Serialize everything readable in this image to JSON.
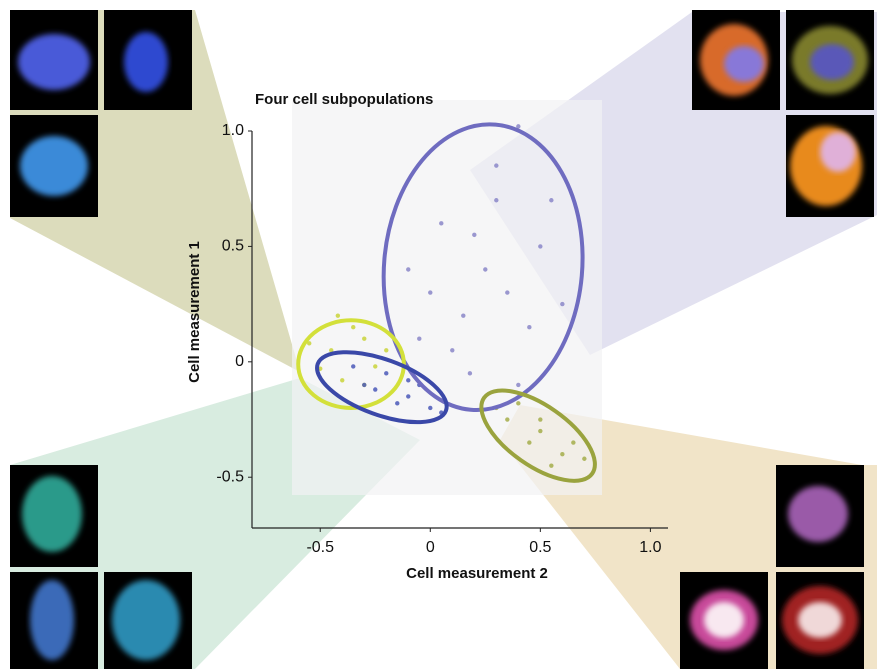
{
  "chart_data": {
    "type": "scatter",
    "title": "Four cell subpopulations",
    "x_label": "Cell measurement 2",
    "y_label": "Cell measurement 1",
    "xlim": [
      -0.81,
      1.08
    ],
    "ylim": [
      -0.72,
      1.0
    ],
    "xticks": [
      -0.5,
      0,
      0.5,
      {
        "value": 1,
        "label": "1.0"
      }
    ],
    "yticks": [
      -0.5,
      0,
      0.5,
      {
        "value": 1,
        "label": "1.0"
      }
    ],
    "series": [
      {
        "color": "#8a86c8",
        "ellipse_color": "#6f6cc0",
        "x": [
          0.05,
          0.3,
          0.4,
          0.15,
          0.35,
          0.5,
          -0.1,
          0.2,
          0.45,
          0.1,
          0.3,
          -0.05,
          0.6,
          0.25,
          0.0,
          0.55,
          0.18,
          0.4
        ],
        "y": [
          0.6,
          0.85,
          1.02,
          0.2,
          0.3,
          0.5,
          0.4,
          0.55,
          0.15,
          0.05,
          0.7,
          0.1,
          0.25,
          0.4,
          0.3,
          0.7,
          -0.05,
          -0.1
        ],
        "ellipse": {
          "cx": 0.24,
          "cy": 0.41,
          "rx": 0.45,
          "ry": 0.62,
          "angle": 5
        }
      },
      {
        "color": "#c9d43a",
        "ellipse_color": "#d3e03a",
        "x": [
          -0.45,
          -0.3,
          -0.4,
          -0.25,
          -0.5,
          -0.35,
          -0.2,
          -0.42,
          -0.3,
          -0.55
        ],
        "y": [
          0.05,
          0.1,
          -0.08,
          -0.02,
          -0.03,
          0.15,
          0.05,
          0.2,
          -0.1,
          0.08
        ],
        "ellipse": {
          "cx": -0.36,
          "cy": -0.01,
          "rx": 0.24,
          "ry": 0.19,
          "angle": 0
        }
      },
      {
        "color": "#4a58b8",
        "ellipse_color": "#3a48a8",
        "x": [
          -0.3,
          -0.1,
          0,
          -0.2,
          -0.35,
          -0.05,
          -0.15,
          0.05,
          -0.25,
          -0.1
        ],
        "y": [
          -0.1,
          -0.15,
          -0.2,
          -0.05,
          -0.02,
          -0.1,
          -0.18,
          -0.22,
          -0.12,
          -0.08
        ],
        "ellipse": {
          "cx": -0.22,
          "cy": -0.11,
          "rx": 0.31,
          "ry": 0.12,
          "angle": 20
        }
      },
      {
        "color": "#a4ad4a",
        "ellipse_color": "#9aa33e",
        "x": [
          0.35,
          0.5,
          0.6,
          0.45,
          0.7,
          0.4,
          0.55,
          0.65,
          0.3,
          0.5
        ],
        "y": [
          -0.25,
          -0.3,
          -0.4,
          -0.35,
          -0.42,
          -0.18,
          -0.45,
          -0.35,
          -0.2,
          -0.25
        ],
        "ellipse": {
          "cx": 0.49,
          "cy": -0.32,
          "rx": 0.3,
          "ry": 0.13,
          "angle": 35
        }
      }
    ]
  }
}
